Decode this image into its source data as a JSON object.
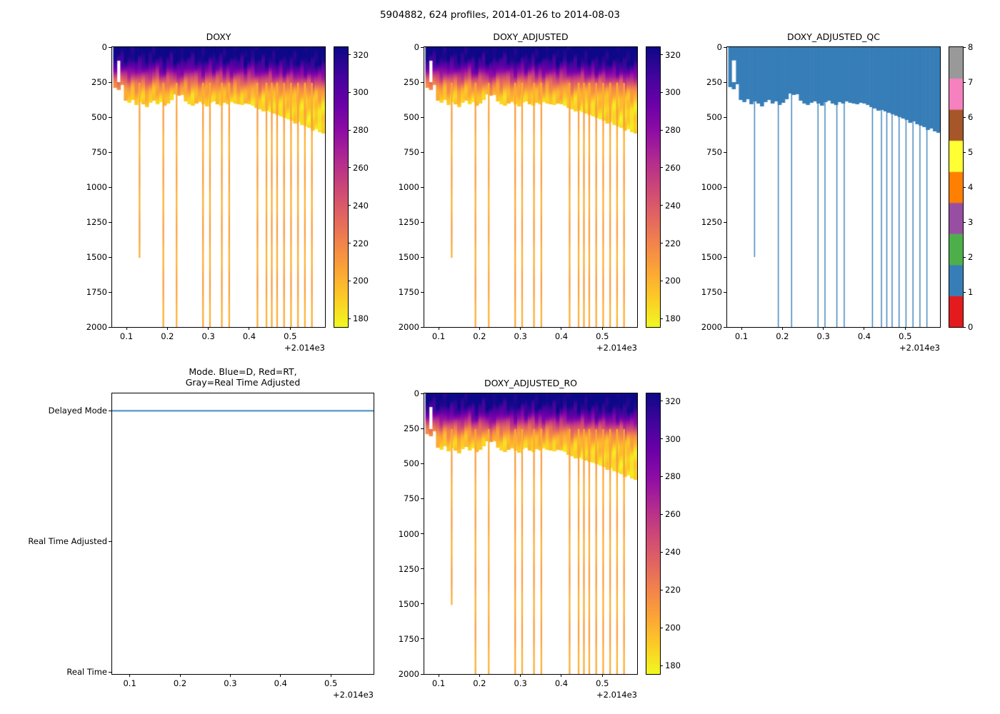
{
  "figure": {
    "suptitle": "5904882, 624 profiles, 2014-01-26 to 2014-08-03"
  },
  "chart_data": {
    "shared_profile_section": {
      "n_profiles_total": 624,
      "date_range": [
        "2014-01-26",
        "2014-08-03"
      ],
      "x_range": [
        2014.065,
        2014.585
      ],
      "x_ticks": [
        2014.1,
        2014.2,
        2014.3,
        2014.4,
        2014.5
      ],
      "x_tick_labels": [
        "0.1",
        "0.2",
        "0.3",
        "0.4",
        "0.5"
      ],
      "x_offset_label": "+2.014e3",
      "depth_range": [
        0,
        2000
      ],
      "depth_ticks": [
        0,
        250,
        500,
        750,
        1000,
        1250,
        1500,
        1750,
        2000
      ],
      "profile_x_start": 2014.072,
      "profile_x_step": 0.00862,
      "surface_value": 332,
      "deep_value": 186,
      "bottom_depths": [
        285,
        300,
        265,
        380,
        395,
        372,
        408,
        386,
        402,
        422,
        392,
        376,
        401,
        388,
        412,
        396,
        372,
        334,
        342,
        336,
        381,
        402,
        412,
        396,
        386,
        401,
        416,
        392,
        382,
        401,
        411,
        392,
        402,
        386,
        396,
        401,
        406,
        396,
        401,
        411,
        431,
        441,
        456,
        451,
        461,
        471,
        481,
        491,
        501,
        511,
        521,
        541,
        531,
        551,
        561,
        571,
        591,
        581,
        601,
        611
      ],
      "thermocline_mid_depths": [
        205,
        196,
        186,
        206,
        212,
        191,
        216,
        201,
        196,
        221,
        206,
        191,
        186,
        211,
        226,
        201,
        196,
        216,
        231,
        211,
        196,
        206,
        191,
        201,
        216,
        221,
        206,
        196,
        211,
        201,
        191,
        216,
        206,
        221,
        196,
        211,
        201,
        226,
        206,
        196,
        216,
        231,
        211,
        221,
        206,
        216,
        226,
        211,
        231,
        221,
        216,
        226,
        236,
        221,
        231,
        226,
        241,
        231,
        236,
        229
      ],
      "data_gaps": [
        {
          "x": 2014.081,
          "top_depth": 95,
          "bottom_depth": 250
        }
      ],
      "deep_spikes": [
        {
          "x": 2014.132,
          "depth": 1500,
          "value": 206
        },
        {
          "x": 2014.19,
          "depth": 2000,
          "value": 206
        },
        {
          "x": 2014.2225,
          "depth": 2000,
          "value": 204
        },
        {
          "x": 2014.287,
          "depth": 2000,
          "value": 207
        },
        {
          "x": 2014.304,
          "depth": 2000,
          "value": 205
        },
        {
          "x": 2014.333,
          "depth": 2000,
          "value": 206
        },
        {
          "x": 2014.351,
          "depth": 2000,
          "value": 205
        },
        {
          "x": 2014.42,
          "depth": 2000,
          "value": 206
        },
        {
          "x": 2014.442,
          "depth": 2000,
          "value": 204
        },
        {
          "x": 2014.455,
          "depth": 2000,
          "value": 206
        },
        {
          "x": 2014.468,
          "depth": 2000,
          "value": 205
        },
        {
          "x": 2014.485,
          "depth": 2000,
          "value": 207
        },
        {
          "x": 2014.502,
          "depth": 2000,
          "value": 205
        },
        {
          "x": 2014.519,
          "depth": 2000,
          "value": 206
        },
        {
          "x": 2014.536,
          "depth": 2000,
          "value": 204
        },
        {
          "x": 2014.553,
          "depth": 2000,
          "value": 206
        }
      ]
    },
    "charts": [
      {
        "key": "doxy",
        "type": "heatmap",
        "title": "DOXY",
        "colormap": "plasma_reversed",
        "value_range": [
          175.5,
          324
        ],
        "colorbar_ticks": [
          180,
          200,
          220,
          240,
          260,
          280,
          300,
          320
        ]
      },
      {
        "key": "doxy_adjusted",
        "type": "heatmap",
        "title": "DOXY_ADJUSTED",
        "colormap": "plasma_reversed",
        "value_range": [
          175.5,
          324
        ],
        "colorbar_ticks": [
          180,
          200,
          220,
          240,
          260,
          280,
          300,
          320
        ]
      },
      {
        "key": "doxy_adjusted_qc",
        "type": "heatmap",
        "title": "DOXY_ADJUSTED_QC",
        "colormap": "Set1_9",
        "qc_flag_value": 1,
        "qc_flag_color": "#377eb8",
        "value_range": [
          0,
          8
        ],
        "colors": [
          "#e41a1c",
          "#377eb8",
          "#4daf4a",
          "#984ea3",
          "#ff7f00",
          "#ffff33",
          "#a65628",
          "#f781bf",
          "#999999"
        ],
        "colorbar_ticks": [
          0,
          1,
          2,
          3,
          4,
          5,
          6,
          7,
          8
        ]
      },
      {
        "key": "mode",
        "type": "line",
        "title": "Mode. Blue=D, Red=RT,\nGray=Real Time Adjusted",
        "y_categories": [
          "Delayed Mode",
          "Real Time Adjusted",
          "Real Time"
        ],
        "line": {
          "name": "mode",
          "color": "#1f77b4",
          "value": "Delayed Mode",
          "x_start": 2014.065,
          "x_end": 2014.585
        }
      },
      {
        "key": "doxy_adjusted_ro",
        "type": "heatmap",
        "title": "DOXY_ADJUSTED_RO",
        "colormap": "plasma_reversed",
        "value_range": [
          175.5,
          324
        ],
        "colorbar_ticks": [
          180,
          200,
          220,
          240,
          260,
          280,
          300,
          320
        ]
      }
    ]
  }
}
